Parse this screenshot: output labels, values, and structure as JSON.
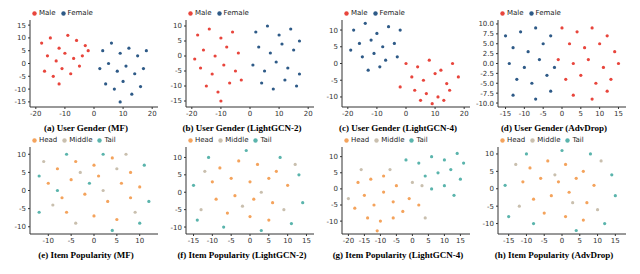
{
  "chart_data": [
    {
      "type": "scatter",
      "title": "(a) User Gender (MF)",
      "xlim": [
        -22,
        22
      ],
      "ylim": [
        -17,
        17
      ],
      "xticks": [
        -20,
        -10,
        0,
        10,
        20
      ],
      "yticks": [
        -15,
        -10,
        -5,
        0,
        5,
        10,
        15
      ],
      "grid": false,
      "legend": "upper left",
      "series": [
        {
          "name": "Male",
          "color": "#e8453c",
          "x": [
            -18,
            -15,
            -12,
            -9,
            -6,
            -3,
            -16,
            -13,
            -10,
            -7,
            -4,
            -17,
            -14,
            -11,
            -8,
            -5,
            -2,
            -12
          ],
          "y": [
            8,
            10,
            6,
            11,
            9,
            7,
            3,
            1,
            4,
            2,
            3,
            -3,
            -5,
            -2,
            -4,
            -1,
            5,
            -8
          ]
        },
        {
          "name": "Female",
          "color": "#2e5a87",
          "x": [
            3,
            6,
            9,
            12,
            15,
            18,
            2,
            5,
            8,
            11,
            14,
            17,
            4,
            7,
            10,
            13,
            16,
            9
          ],
          "y": [
            5,
            8,
            4,
            6,
            3,
            5,
            -2,
            0,
            -3,
            -1,
            -4,
            -2,
            -8,
            -10,
            -7,
            -12,
            -9,
            -15
          ]
        }
      ]
    },
    {
      "type": "scatter",
      "title": "(b) User Gender (LightGCN-2)",
      "xlim": [
        -22,
        22
      ],
      "ylim": [
        -17,
        12
      ],
      "xticks": [
        -20,
        -10,
        0,
        10,
        20
      ],
      "yticks": [
        -15,
        -10,
        -5,
        0,
        5,
        10
      ],
      "grid": false,
      "legend": "upper left",
      "series": [
        {
          "name": "Male",
          "color": "#e8453c",
          "x": [
            -18,
            -14,
            -10,
            -6,
            -16,
            -12,
            -8,
            -4,
            -17,
            -13,
            -9,
            -5,
            -15,
            -11,
            -7,
            -10,
            -3,
            -19
          ],
          "y": [
            7,
            9,
            6,
            8,
            2,
            0,
            3,
            1,
            -4,
            -6,
            -3,
            -5,
            -10,
            -12,
            -9,
            -15,
            -8,
            -1
          ]
        },
        {
          "name": "Female",
          "color": "#2e5a87",
          "x": [
            2,
            6,
            10,
            14,
            17,
            3,
            7,
            11,
            15,
            1,
            5,
            9,
            13,
            17,
            4,
            8,
            12,
            16
          ],
          "y": [
            8,
            10,
            7,
            9,
            5,
            3,
            1,
            4,
            2,
            -3,
            -5,
            -2,
            -4,
            -6,
            -9,
            -11,
            -8,
            -10
          ]
        }
      ]
    },
    {
      "type": "scatter",
      "title": "(c) User Gender (LightGCN-4)",
      "xlim": [
        -22,
        22
      ],
      "ylim": [
        -13,
        13
      ],
      "xticks": [
        -20,
        -10,
        0,
        10,
        20
      ],
      "yticks": [
        -10,
        -5,
        0,
        5,
        10
      ],
      "grid": false,
      "legend": "upper left",
      "series": [
        {
          "name": "Male",
          "color": "#e8453c",
          "x": [
            0,
            4,
            8,
            12,
            16,
            2,
            6,
            10,
            14,
            18,
            -2,
            3,
            7,
            11,
            15,
            5,
            9,
            13
          ],
          "y": [
            0,
            -1,
            1,
            -2,
            0,
            -4,
            -5,
            -3,
            -6,
            -4,
            -7,
            -8,
            -9,
            -10,
            -8,
            -11,
            -12,
            -11
          ]
        },
        {
          "name": "Female",
          "color": "#2e5a87",
          "x": [
            -18,
            -14,
            -10,
            -6,
            -2,
            -16,
            -12,
            -8,
            -4,
            -15,
            -11,
            -7,
            -3,
            -19,
            -9,
            -13
          ],
          "y": [
            10,
            12,
            9,
            11,
            10,
            6,
            7,
            5,
            6,
            2,
            3,
            1,
            2,
            4,
            -1,
            -2
          ]
        }
      ]
    },
    {
      "type": "scatter",
      "title": "(d) User Gender (AdvDrop)",
      "xlim": [
        -17,
        17
      ],
      "ylim": [
        -11,
        11
      ],
      "xticks": [
        -15,
        -10,
        -5,
        0,
        5,
        10,
        15
      ],
      "yticks": [
        {
          "value": -10,
          "label": "-10.0"
        },
        {
          "value": -7.5,
          "label": "-7.5"
        },
        {
          "value": -5,
          "label": "-5.0"
        },
        {
          "value": -2.5,
          "label": "-2.5"
        },
        {
          "value": 0,
          "label": "0.0"
        },
        {
          "value": 2.5,
          "label": "2.5"
        },
        {
          "value": 5,
          "label": "5.0"
        },
        {
          "value": 7.5,
          "label": "7.5"
        },
        {
          "value": 10,
          "label": "10.0"
        }
      ],
      "grid": false,
      "legend": "upper left",
      "series": [
        {
          "name": "Male",
          "color": "#e8453c",
          "x": [
            0,
            4,
            8,
            12,
            2,
            6,
            10,
            14,
            -1,
            3,
            7,
            11,
            15,
            1,
            5,
            9,
            13,
            3,
            8,
            12
          ],
          "y": [
            9,
            8,
            9,
            7,
            5,
            4,
            5,
            3,
            1,
            0,
            1,
            -1,
            0,
            -4,
            -3,
            -5,
            -4,
            -8,
            -9,
            -7
          ]
        },
        {
          "name": "Female",
          "color": "#2e5a87",
          "x": [
            -15,
            -11,
            -7,
            -3,
            -13,
            -9,
            -5,
            -14,
            -10,
            -6,
            -2,
            -12,
            -8,
            -4,
            -13,
            -7,
            -3
          ],
          "y": [
            7,
            8,
            9,
            7,
            4,
            3,
            5,
            0,
            -1,
            1,
            -1,
            -4,
            -5,
            -3,
            -8,
            -9,
            -7
          ]
        }
      ]
    },
    {
      "type": "scatter",
      "title": "(e) Item Popularity (MF)",
      "xlim": [
        -14,
        14
      ],
      "ylim": [
        -12,
        12
      ],
      "xticks": [
        -10,
        -5,
        0,
        5,
        10
      ],
      "yticks": [
        -10,
        -5,
        0,
        5,
        10
      ],
      "grid": false,
      "legend": "upper left",
      "series": [
        {
          "name": "Head",
          "color": "#f4a35c",
          "x": [
            -8,
            -4,
            0,
            4,
            8,
            -10,
            -5,
            1,
            6,
            10,
            -7,
            -2,
            3,
            8,
            -6,
            0,
            5
          ],
          "y": [
            6,
            8,
            7,
            9,
            5,
            2,
            3,
            4,
            2,
            1,
            -2,
            -1,
            -3,
            -2,
            -6,
            -7,
            -8
          ]
        },
        {
          "name": "Middle",
          "color": "#c9bfae",
          "x": [
            -11,
            -3,
            5,
            -9,
            2,
            9,
            -4,
            7
          ],
          "y": [
            8,
            5,
            6,
            -4,
            0,
            -6,
            -9,
            10
          ]
        },
        {
          "name": "Tail",
          "color": "#5ab4ac",
          "x": [
            -12,
            -6,
            2,
            11,
            -12,
            -8,
            12,
            4,
            -1,
            10
          ],
          "y": [
            4,
            10,
            10,
            7,
            -6,
            0,
            -3,
            -11,
            2,
            -9
          ]
        }
      ]
    },
    {
      "type": "scatter",
      "title": "(f) Item Popularity (LightGCN-2)",
      "xlim": [
        -17,
        17
      ],
      "ylim": [
        -12,
        13
      ],
      "xticks": [
        -15,
        -10,
        -5,
        0,
        5,
        10,
        15
      ],
      "yticks": [
        -10,
        -5,
        0,
        5,
        10
      ],
      "grid": false,
      "legend": "upper left",
      "series": [
        {
          "name": "Head",
          "color": "#f4a35c",
          "x": [
            -8,
            -3,
            2,
            7,
            -10,
            -5,
            0,
            5,
            10,
            -9,
            -4,
            1,
            6,
            -6,
            0,
            5
          ],
          "y": [
            7,
            9,
            8,
            6,
            3,
            4,
            3,
            4,
            2,
            -2,
            -1,
            -2,
            -3,
            -6,
            -7,
            -8
          ]
        },
        {
          "name": "Middle",
          "color": "#c9bfae",
          "x": [
            -12,
            3,
            -2,
            9,
            12,
            -13
          ],
          "y": [
            6,
            0,
            -4,
            -5,
            8,
            -5
          ]
        },
        {
          "name": "Tail",
          "color": "#5ab4ac",
          "x": [
            -15,
            -14,
            -11,
            13,
            14,
            11,
            -1,
            8,
            -7,
            3
          ],
          "y": [
            2,
            -8,
            10,
            5,
            -3,
            -9,
            12,
            10,
            -10,
            -11
          ]
        }
      ]
    },
    {
      "type": "scatter",
      "title": "(g) Item Popularity (LightGCN-4)",
      "xlim": [
        -22,
        18
      ],
      "ylim": [
        -14,
        13
      ],
      "xticks": [
        -20,
        -15,
        -10,
        -5,
        0,
        5,
        10,
        15
      ],
      "yticks": [
        -10,
        -5,
        0,
        5,
        10
      ],
      "grid": false,
      "legend": "upper left",
      "series": [
        {
          "name": "Head",
          "color": "#f4a35c",
          "x": [
            -18,
            -15,
            -12,
            -9,
            -6,
            -3,
            -14,
            -10,
            -6,
            -17,
            -13,
            -9,
            -5,
            -1,
            2,
            -11
          ],
          "y": [
            -6,
            -2,
            -5,
            -1,
            -4,
            -7,
            -9,
            -10,
            -9,
            2,
            3,
            4,
            1,
            -3,
            -5,
            -13
          ]
        },
        {
          "name": "Middle",
          "color": "#c9bfae",
          "x": [
            -20,
            -7,
            0,
            -16,
            4,
            3
          ],
          "y": [
            -3,
            6,
            2,
            6,
            -9,
            1
          ]
        },
        {
          "name": "Tail",
          "color": "#5ab4ac",
          "x": [
            2,
            6,
            10,
            14,
            4,
            8,
            12,
            15,
            6,
            10,
            13,
            16,
            -2
          ],
          "y": [
            8,
            10,
            9,
            11,
            4,
            5,
            6,
            3,
            0,
            1,
            -2,
            8,
            9
          ]
        }
      ]
    },
    {
      "type": "scatter",
      "title": "(h) Item Popularity (AdvDrop)",
      "xlim": [
        -18,
        18
      ],
      "ylim": [
        -13,
        12
      ],
      "xticks": [
        -15,
        -10,
        -5,
        0,
        5,
        10,
        15
      ],
      "yticks": [
        -10,
        -5,
        0,
        5,
        10
      ],
      "grid": false,
      "legend": "upper left",
      "series": [
        {
          "name": "Head",
          "color": "#f4a35c",
          "x": [
            -9,
            -4,
            1,
            6,
            -11,
            -6,
            -1,
            4,
            9,
            -8,
            -3,
            2,
            7,
            -5,
            1,
            6
          ],
          "y": [
            6,
            8,
            7,
            5,
            2,
            3,
            2,
            3,
            1,
            -3,
            -2,
            -1,
            -4,
            -7,
            -8,
            -9
          ]
        },
        {
          "name": "Middle",
          "color": "#c9bfae",
          "x": [
            -13,
            -2,
            3,
            10,
            11,
            -12
          ],
          "y": [
            7,
            4,
            -4,
            -6,
            8,
            -5
          ]
        },
        {
          "name": "Tail",
          "color": "#5ab4ac",
          "x": [
            -16,
            -15,
            -10,
            14,
            15,
            12,
            0,
            8,
            -8,
            4
          ],
          "y": [
            1,
            -8,
            10,
            4,
            -2,
            -10,
            11,
            10,
            -10,
            -12
          ]
        }
      ]
    }
  ]
}
